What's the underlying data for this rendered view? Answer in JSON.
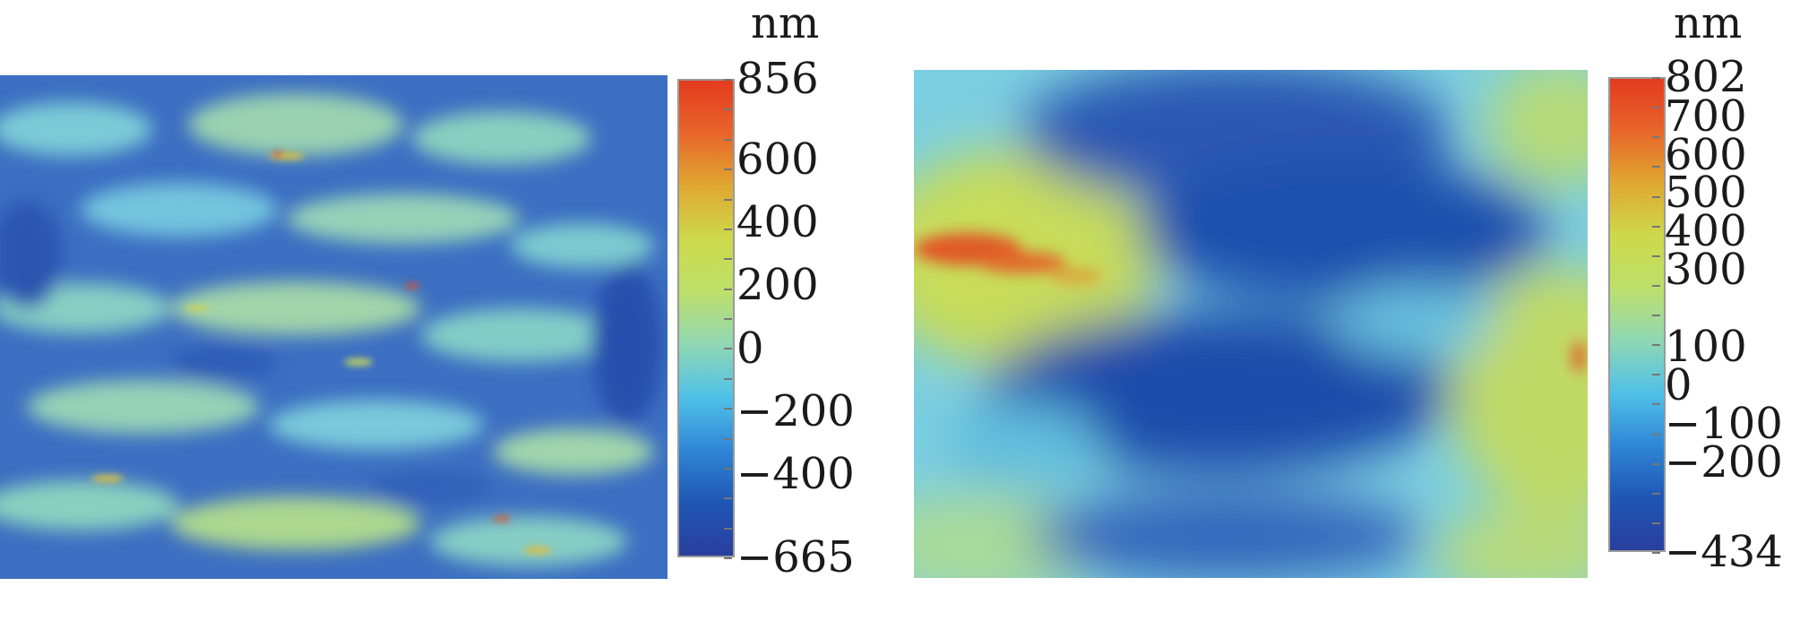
{
  "panels": [
    {
      "unit": "nm",
      "colorbar": {
        "max": 856,
        "min": -665,
        "labels": [
          "856",
          "600",
          "400",
          "200",
          "0",
          "-200",
          "-400",
          "-665"
        ],
        "values": [
          856,
          600,
          400,
          200,
          0,
          -200,
          -400,
          -665
        ]
      }
    },
    {
      "unit": "nm",
      "colorbar": {
        "max": 802,
        "min": -434,
        "labels": [
          "802",
          "700",
          "600",
          "500",
          "400",
          "300",
          "100",
          "0",
          "-100",
          "-200",
          "-434"
        ],
        "values": [
          802,
          700,
          600,
          500,
          400,
          300,
          100,
          0,
          -100,
          -200,
          -434
        ]
      }
    }
  ],
  "colormap": [
    "#2a3f9e",
    "#1f56b5",
    "#2f86d6",
    "#4fc1e8",
    "#8fd7b4",
    "#bde06a",
    "#cdd94a",
    "#e0a830",
    "#e8652a",
    "#e33b1f"
  ]
}
